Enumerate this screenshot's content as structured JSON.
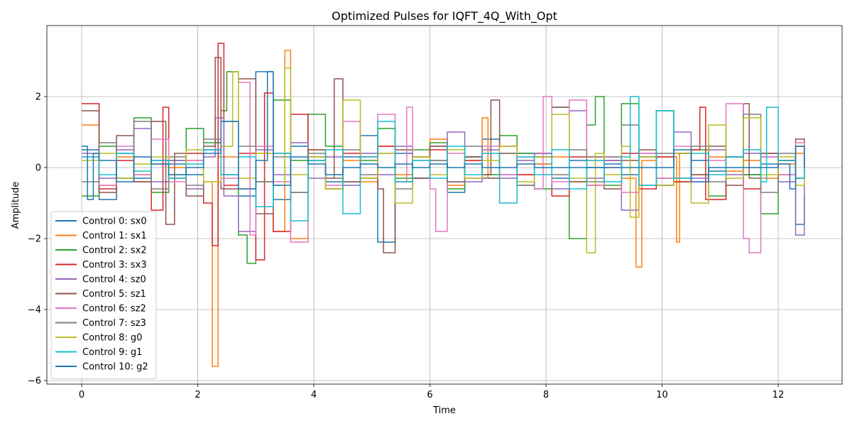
{
  "chart_data": {
    "type": "line",
    "step": true,
    "title": "Optimized Pulses for IQFT_4Q_With_Opt",
    "xlabel": "Time",
    "ylabel": "Amplitude",
    "xlim": [
      -0.6,
      13.1
    ],
    "ylim": [
      -6.1,
      4.0
    ],
    "xticks": [
      0,
      2,
      4,
      6,
      8,
      10,
      12
    ],
    "yticks": [
      -6,
      -4,
      -2,
      0,
      2
    ],
    "xtick_labels": [
      "0",
      "2",
      "4",
      "6",
      "8",
      "10",
      "12"
    ],
    "ytick_labels": [
      "−6",
      "−4",
      "−2",
      "0",
      "2"
    ],
    "grid": true,
    "legend_position": "lower-left",
    "series": [
      {
        "name": "Control 0: sx0",
        "color": "#1f77b4",
        "x": [
          0.0,
          0.3,
          0.6,
          0.9,
          1.2,
          1.5,
          1.8,
          2.1,
          2.4,
          2.7,
          3.0,
          3.3,
          3.6,
          3.9,
          4.2,
          4.5,
          4.8,
          5.1,
          5.4,
          5.7,
          6.0,
          6.3,
          6.6,
          6.9,
          7.2,
          7.5,
          7.8,
          8.1,
          8.4,
          8.7,
          9.0,
          9.3,
          9.6,
          9.9,
          10.2,
          10.5,
          10.8,
          11.1,
          11.4,
          11.7,
          12.0,
          12.3,
          12.45
        ],
        "y": [
          0.5,
          -0.9,
          0.4,
          -0.3,
          0.2,
          0.1,
          -0.2,
          0.5,
          1.3,
          -0.8,
          2.7,
          -0.9,
          0.6,
          0.2,
          -0.4,
          0.3,
          0.9,
          -2.1,
          0.4,
          -0.3,
          0.6,
          -0.7,
          0.3,
          0.8,
          -0.2,
          0.4,
          0.1,
          -0.3,
          0.2,
          0.0,
          0.1,
          -0.2,
          0.3,
          -0.5,
          0.4,
          0.2,
          -0.1,
          0.3,
          -0.2,
          0.1,
          0.2,
          -1.6,
          -0.8
        ]
      },
      {
        "name": "Control 1: sx1",
        "color": "#ff7f0e",
        "x": [
          0.0,
          0.3,
          0.6,
          0.9,
          1.2,
          1.5,
          1.8,
          2.1,
          2.25,
          2.35,
          2.7,
          3.0,
          3.3,
          3.5,
          3.6,
          3.9,
          4.2,
          4.5,
          4.8,
          5.1,
          5.4,
          5.7,
          6.0,
          6.3,
          6.6,
          6.9,
          7.0,
          7.2,
          7.5,
          7.8,
          8.1,
          8.4,
          8.7,
          9.0,
          9.3,
          9.55,
          9.65,
          9.9,
          10.25,
          10.3,
          10.5,
          10.8,
          11.1,
          11.4,
          11.7,
          12.0,
          12.3,
          12.45
        ],
        "y": [
          1.2,
          -0.5,
          0.3,
          -0.2,
          0.1,
          0.0,
          0.2,
          -0.4,
          -5.6,
          0.3,
          -0.6,
          0.4,
          -1.8,
          3.3,
          -2.0,
          0.5,
          -0.3,
          0.2,
          -0.4,
          0.6,
          -0.2,
          0.3,
          0.8,
          -0.5,
          0.2,
          1.4,
          -0.3,
          0.4,
          -0.2,
          0.1,
          0.3,
          -0.4,
          0.2,
          0.0,
          -0.3,
          -2.8,
          0.2,
          0.3,
          -2.1,
          0.4,
          -0.2,
          0.3,
          -0.1,
          0.2,
          -0.3,
          0.1,
          0.4,
          0.0
        ]
      },
      {
        "name": "Control 2: sx2",
        "color": "#2ca02c",
        "x": [
          0.0,
          0.3,
          0.6,
          0.9,
          1.2,
          1.5,
          1.8,
          2.1,
          2.4,
          2.5,
          2.7,
          2.85,
          3.0,
          3.3,
          3.6,
          3.9,
          4.2,
          4.5,
          4.8,
          5.1,
          5.4,
          5.7,
          6.0,
          6.3,
          6.6,
          6.9,
          7.2,
          7.5,
          7.8,
          8.1,
          8.4,
          8.7,
          8.85,
          9.0,
          9.3,
          9.6,
          9.9,
          10.2,
          10.5,
          10.8,
          11.1,
          11.4,
          11.7,
          12.0,
          12.3,
          12.45
        ],
        "y": [
          -0.8,
          0.6,
          -0.3,
          1.4,
          -0.7,
          0.2,
          1.1,
          0.7,
          1.6,
          2.7,
          -1.9,
          -2.7,
          -0.4,
          1.9,
          0.2,
          1.5,
          0.6,
          -0.4,
          0.2,
          1.1,
          -0.3,
          0.5,
          0.7,
          -0.6,
          0.3,
          -0.2,
          0.9,
          0.4,
          -0.6,
          1.7,
          -2.0,
          1.2,
          2.0,
          -0.5,
          1.8,
          0.3,
          1.6,
          -0.4,
          0.5,
          -0.8,
          0.3,
          -0.2,
          -1.3,
          0.2,
          0.6,
          0.0
        ]
      },
      {
        "name": "Control 3: sx3",
        "color": "#d62728",
        "x": [
          0.0,
          0.3,
          0.6,
          0.9,
          1.2,
          1.4,
          1.5,
          1.8,
          2.1,
          2.25,
          2.35,
          2.45,
          2.7,
          3.0,
          3.15,
          3.3,
          3.6,
          3.9,
          4.2,
          4.5,
          4.8,
          5.1,
          5.4,
          5.7,
          6.0,
          6.3,
          6.6,
          6.9,
          7.2,
          7.5,
          7.8,
          8.1,
          8.4,
          8.7,
          9.0,
          9.3,
          9.6,
          9.9,
          10.2,
          10.5,
          10.65,
          10.75,
          11.1,
          11.4,
          11.7,
          12.0,
          12.3,
          12.45
        ],
        "y": [
          1.8,
          -0.6,
          0.2,
          -0.4,
          -1.2,
          1.7,
          -0.3,
          0.4,
          -1.0,
          -2.2,
          3.5,
          -0.5,
          0.4,
          -2.6,
          2.1,
          -1.8,
          1.5,
          0.3,
          -0.6,
          0.4,
          -0.3,
          0.6,
          -0.4,
          0.3,
          0.5,
          -0.4,
          0.2,
          -0.3,
          0.6,
          -0.2,
          0.4,
          -0.8,
          0.3,
          -0.5,
          0.2,
          0.4,
          -0.6,
          0.3,
          -0.4,
          0.5,
          1.7,
          -0.9,
          0.3,
          -0.6,
          0.4,
          0.2,
          -0.3,
          0.0
        ]
      },
      {
        "name": "Control 4: sz0",
        "color": "#9467bd",
        "x": [
          0.0,
          0.3,
          0.6,
          0.9,
          1.2,
          1.5,
          1.8,
          2.1,
          2.3,
          2.45,
          2.7,
          3.0,
          3.3,
          3.6,
          3.9,
          4.2,
          4.5,
          4.8,
          5.1,
          5.4,
          5.7,
          6.0,
          6.3,
          6.6,
          6.9,
          7.2,
          7.5,
          7.8,
          8.1,
          8.4,
          8.7,
          9.0,
          9.3,
          9.6,
          9.9,
          10.2,
          10.5,
          10.8,
          11.1,
          11.4,
          11.7,
          12.0,
          12.3,
          12.45
        ],
        "y": [
          0.4,
          -0.3,
          0.5,
          1.1,
          -0.4,
          0.2,
          -0.6,
          0.3,
          1.4,
          -0.8,
          -1.8,
          0.5,
          -0.2,
          0.7,
          -0.3,
          0.3,
          -0.5,
          0.4,
          -0.2,
          0.6,
          -0.3,
          0.2,
          1.0,
          -0.4,
          0.5,
          -0.3,
          0.2,
          0.4,
          -0.6,
          1.6,
          -0.3,
          0.2,
          -1.2,
          0.4,
          -0.5,
          1.0,
          -0.3,
          0.5,
          -0.2,
          0.4,
          0.3,
          -0.4,
          -1.9,
          0.0
        ]
      },
      {
        "name": "Control 5: sz1",
        "color": "#8c564b",
        "x": [
          0.0,
          0.3,
          0.6,
          0.9,
          1.2,
          1.45,
          1.6,
          1.8,
          2.1,
          2.3,
          2.4,
          2.7,
          3.0,
          3.3,
          3.6,
          3.9,
          4.2,
          4.35,
          4.5,
          4.8,
          5.1,
          5.2,
          5.4,
          5.7,
          6.0,
          6.3,
          6.6,
          6.9,
          7.05,
          7.2,
          7.5,
          7.8,
          8.1,
          8.4,
          8.7,
          9.0,
          9.3,
          9.6,
          9.9,
          10.2,
          10.5,
          10.8,
          11.1,
          11.4,
          11.5,
          11.7,
          12.0,
          12.3,
          12.45
        ],
        "y": [
          1.6,
          -0.7,
          0.9,
          -0.4,
          1.3,
          -1.6,
          0.4,
          -0.8,
          0.6,
          3.1,
          -0.6,
          2.5,
          -1.3,
          0.4,
          -0.7,
          0.5,
          -0.3,
          2.5,
          -0.4,
          0.3,
          -0.6,
          -2.4,
          0.5,
          -0.3,
          0.6,
          -0.4,
          0.3,
          -0.2,
          1.9,
          0.4,
          -0.5,
          0.3,
          1.7,
          -0.4,
          0.3,
          -0.6,
          0.2,
          0.5,
          -0.3,
          0.4,
          -0.2,
          0.6,
          -0.5,
          1.8,
          -0.3,
          0.4,
          -0.2,
          0.8,
          0.0
        ]
      },
      {
        "name": "Control 6: sz2",
        "color": "#e377c2",
        "x": [
          0.0,
          0.3,
          0.6,
          0.9,
          1.2,
          1.5,
          1.8,
          2.1,
          2.4,
          2.7,
          2.9,
          3.0,
          3.3,
          3.6,
          3.9,
          4.2,
          4.5,
          4.8,
          5.1,
          5.4,
          5.6,
          5.7,
          6.0,
          6.1,
          6.3,
          6.6,
          6.9,
          7.2,
          7.5,
          7.8,
          7.95,
          8.1,
          8.4,
          8.7,
          9.0,
          9.3,
          9.6,
          9.9,
          10.2,
          10.5,
          10.8,
          11.1,
          11.4,
          11.5,
          11.7,
          12.0,
          12.3,
          12.45
        ],
        "y": [
          0.3,
          -0.5,
          0.6,
          -0.2,
          0.8,
          -0.4,
          0.2,
          0.5,
          -0.3,
          2.4,
          -1.9,
          0.6,
          -0.4,
          -2.1,
          0.3,
          -0.5,
          1.3,
          -0.3,
          1.5,
          -0.4,
          1.7,
          0.2,
          -0.6,
          -1.8,
          0.4,
          -0.3,
          0.6,
          -0.2,
          0.3,
          -0.6,
          2.0,
          -0.4,
          1.9,
          -0.5,
          0.3,
          -0.7,
          0.4,
          -0.3,
          0.6,
          -0.4,
          0.2,
          1.8,
          -2.0,
          -2.4,
          0.3,
          -0.2,
          0.7,
          0.0
        ]
      },
      {
        "name": "Control 7: sz3",
        "color": "#7f7f7f",
        "x": [
          0.0,
          0.3,
          0.6,
          0.9,
          1.2,
          1.5,
          1.8,
          2.1,
          2.4,
          2.7,
          3.0,
          3.3,
          3.6,
          3.9,
          4.2,
          4.5,
          4.8,
          5.1,
          5.4,
          5.7,
          6.0,
          6.3,
          6.6,
          6.9,
          7.2,
          7.5,
          7.8,
          8.1,
          8.4,
          8.7,
          9.0,
          9.3,
          9.6,
          9.9,
          10.2,
          10.5,
          10.8,
          11.1,
          11.4,
          11.7,
          12.0,
          12.3,
          12.45
        ],
        "y": [
          -0.4,
          0.7,
          -0.3,
          1.3,
          -0.6,
          0.3,
          -0.5,
          0.8,
          -0.2,
          0.6,
          -0.4,
          0.3,
          -0.7,
          0.4,
          -0.3,
          0.5,
          -0.2,
          0.4,
          -0.6,
          0.3,
          0.2,
          -0.4,
          0.6,
          -0.3,
          0.4,
          -0.5,
          0.3,
          -0.2,
          0.5,
          -0.4,
          0.3,
          1.2,
          -0.5,
          0.4,
          -0.3,
          0.6,
          -0.4,
          0.3,
          1.5,
          -0.7,
          0.4,
          -0.3,
          0.0
        ]
      },
      {
        "name": "Control 8: g0",
        "color": "#bcbd22",
        "x": [
          0.0,
          0.3,
          0.6,
          0.9,
          1.2,
          1.5,
          1.8,
          2.1,
          2.4,
          2.6,
          2.7,
          3.0,
          3.3,
          3.5,
          3.6,
          3.9,
          4.2,
          4.5,
          4.8,
          5.1,
          5.4,
          5.7,
          6.0,
          6.3,
          6.6,
          6.9,
          7.2,
          7.5,
          7.8,
          8.1,
          8.4,
          8.7,
          8.85,
          9.0,
          9.3,
          9.45,
          9.6,
          9.9,
          10.2,
          10.5,
          10.8,
          11.1,
          11.4,
          11.7,
          12.0,
          12.3,
          12.45
        ],
        "y": [
          0.2,
          0.4,
          -0.3,
          0.1,
          0.3,
          -0.2,
          0.5,
          -0.4,
          0.6,
          2.7,
          -0.3,
          0.4,
          -0.5,
          2.8,
          -0.2,
          0.3,
          -0.6,
          1.9,
          -0.3,
          0.4,
          -1.0,
          0.3,
          -0.2,
          0.5,
          -0.3,
          0.2,
          0.6,
          -0.4,
          0.3,
          1.5,
          -0.3,
          -2.4,
          0.4,
          -0.2,
          0.6,
          -1.4,
          0.3,
          -0.5,
          0.4,
          -1.0,
          1.2,
          -0.3,
          1.4,
          -0.2,
          0.3,
          -0.5,
          0.0
        ]
      },
      {
        "name": "Control 9: g1",
        "color": "#17becf",
        "x": [
          0.0,
          0.3,
          0.6,
          0.9,
          1.2,
          1.5,
          1.8,
          2.1,
          2.4,
          2.7,
          3.0,
          3.3,
          3.6,
          3.9,
          4.2,
          4.5,
          4.8,
          5.1,
          5.4,
          5.7,
          6.0,
          6.3,
          6.6,
          6.9,
          7.2,
          7.5,
          7.8,
          8.1,
          8.4,
          8.7,
          9.0,
          9.3,
          9.45,
          9.6,
          9.9,
          10.2,
          10.5,
          10.8,
          11.1,
          11.4,
          11.7,
          11.8,
          12.0,
          12.3,
          12.45
        ],
        "y": [
          0.3,
          -0.2,
          0.4,
          -0.1,
          0.2,
          -0.3,
          0.1,
          0.5,
          -0.2,
          0.3,
          -1.1,
          0.4,
          -1.5,
          0.2,
          0.5,
          -1.3,
          0.3,
          1.3,
          -0.4,
          0.2,
          -0.3,
          0.6,
          -0.2,
          0.4,
          -1.0,
          0.3,
          -0.2,
          0.5,
          -0.6,
          0.2,
          -0.4,
          0.3,
          2.0,
          -0.5,
          1.6,
          -0.3,
          0.4,
          -0.2,
          0.3,
          0.5,
          -0.4,
          1.7,
          0.2,
          -0.3,
          0.0
        ]
      },
      {
        "name": "Control 10: g2",
        "color": "#1f77b4",
        "x": [
          0.0,
          0.1,
          0.2,
          0.3,
          0.6,
          0.9,
          1.2,
          1.5,
          1.8,
          2.1,
          2.4,
          2.7,
          3.0,
          3.2,
          3.3,
          3.6,
          3.9,
          4.2,
          4.5,
          4.8,
          5.1,
          5.4,
          5.7,
          6.0,
          6.3,
          6.6,
          6.9,
          7.2,
          7.5,
          7.8,
          8.1,
          8.4,
          8.7,
          9.0,
          9.3,
          9.6,
          9.9,
          10.2,
          10.5,
          10.8,
          11.1,
          11.4,
          11.7,
          12.0,
          12.2,
          12.3,
          12.45
        ],
        "y": [
          0.6,
          -0.9,
          0.4,
          0.2,
          -0.4,
          0.3,
          0.1,
          -0.2,
          0.0,
          0.4,
          1.3,
          -0.6,
          0.2,
          2.7,
          -0.5,
          0.3,
          0.1,
          -0.2,
          0.0,
          0.1,
          0.0,
          0.1,
          0.0,
          0.1,
          0.0,
          0.1,
          0.0,
          0.0,
          0.1,
          0.0,
          0.0,
          0.0,
          0.0,
          0.0,
          0.0,
          0.0,
          0.0,
          0.5,
          -0.4,
          0.0,
          0.0,
          0.0,
          0.0,
          0.1,
          -0.6,
          0.6,
          0.0
        ]
      }
    ]
  }
}
